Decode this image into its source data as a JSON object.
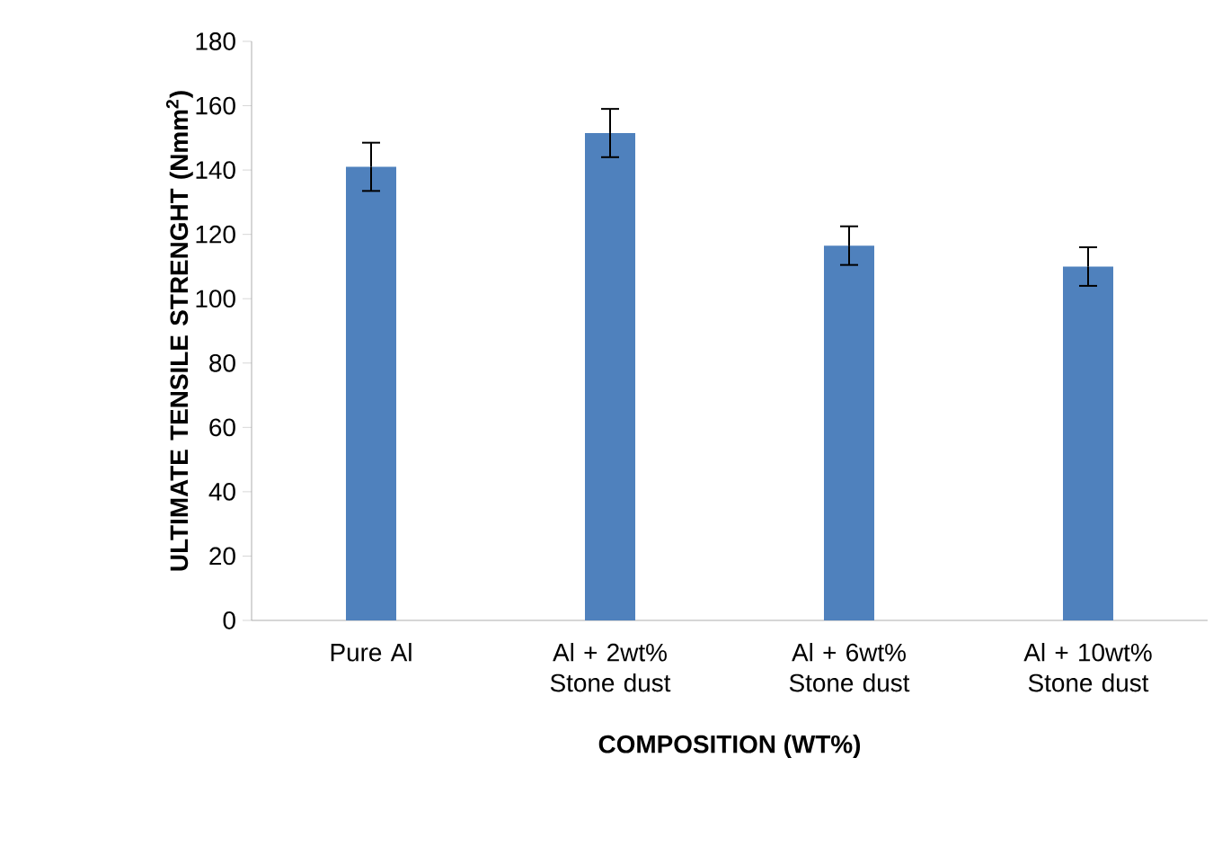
{
  "chart_data": {
    "type": "bar",
    "xlabel": "COMPOSITION (WT%)",
    "ylabel": "ULTIMATE TENSILE STRENGHT (Nmm$^{2}$)",
    "categories": [
      "Pure Al",
      "Al + 2wt% Stone dust",
      "Al + 6wt% Stone dust",
      "Al + 10wt% Stone dust"
    ],
    "values": [
      141,
      151.5,
      116.5,
      110
    ],
    "errors": [
      7.5,
      7.5,
      6,
      6
    ],
    "color": "#4f81bd",
    "ylim": [
      0,
      180
    ],
    "yticks": [
      0,
      20,
      40,
      60,
      80,
      100,
      120,
      140,
      160,
      180
    ],
    "grid": false
  }
}
